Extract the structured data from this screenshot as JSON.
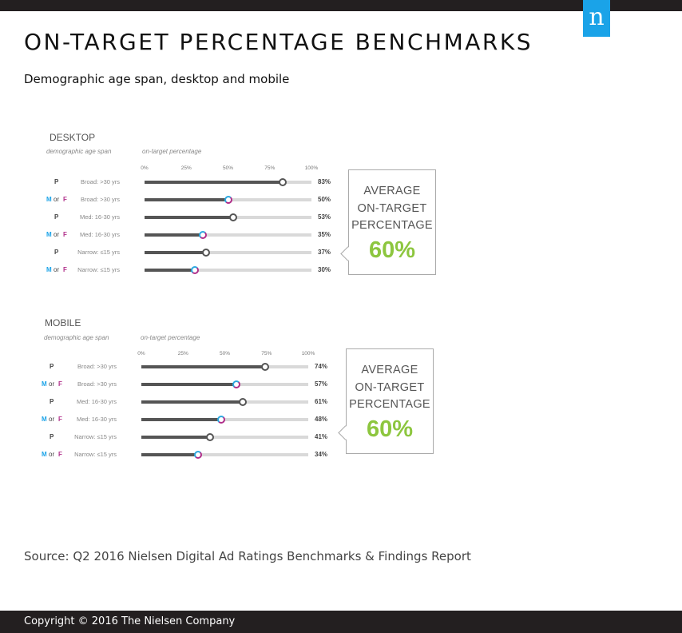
{
  "header": {
    "logo_letter": "n",
    "title": "ON-TARGET PERCENTAGE BENCHMARKS",
    "subtitle": "Demographic age span, desktop and mobile"
  },
  "chart_data": [
    {
      "type": "bar",
      "title": "DESKTOP",
      "row_header": "demographic age span",
      "column_header": "on-target percentage",
      "xlim": [
        0,
        100
      ],
      "ticks": [
        "0%",
        "25%",
        "50%",
        "75%",
        "100%"
      ],
      "rows": [
        {
          "target": "P",
          "span": "Broad: >30 yrs",
          "value": 83,
          "label": "83%"
        },
        {
          "target": "M or F",
          "span": "Broad: >30 yrs",
          "value": 50,
          "label": "50%"
        },
        {
          "target": "P",
          "span": "Med: 16-30 yrs",
          "value": 53,
          "label": "53%"
        },
        {
          "target": "M or F",
          "span": "Med: 16-30 yrs",
          "value": 35,
          "label": "35%"
        },
        {
          "target": "P",
          "span": "Narrow: ≤15 yrs",
          "value": 37,
          "label": "37%"
        },
        {
          "target": "M or F",
          "span": "Narrow: ≤15 yrs",
          "value": 30,
          "label": "30%"
        }
      ],
      "average_label": [
        "AVERAGE",
        "ON-TARGET",
        "PERCENTAGE"
      ],
      "average_value": "60%"
    },
    {
      "type": "bar",
      "title": "MOBILE",
      "row_header": "demographic age span",
      "column_header": "on-target percentage",
      "xlim": [
        0,
        100
      ],
      "ticks": [
        "0%",
        "25%",
        "50%",
        "75%",
        "100%"
      ],
      "rows": [
        {
          "target": "P",
          "span": "Broad: >30 yrs",
          "value": 74,
          "label": "74%"
        },
        {
          "target": "M or F",
          "span": "Broad: >30 yrs",
          "value": 57,
          "label": "57%"
        },
        {
          "target": "P",
          "span": "Med: 16-30 yrs",
          "value": 61,
          "label": "61%"
        },
        {
          "target": "M or F",
          "span": "Med: 16-30 yrs",
          "value": 48,
          "label": "48%"
        },
        {
          "target": "P",
          "span": "Narrow: ≤15 yrs",
          "value": 41,
          "label": "41%"
        },
        {
          "target": "M or F",
          "span": "Narrow: ≤15 yrs",
          "value": 34,
          "label": "34%"
        }
      ],
      "average_label": [
        "AVERAGE",
        "ON-TARGET",
        "PERCENTAGE"
      ],
      "average_value": "60%"
    }
  ],
  "colors": {
    "male": "#1aa3e8",
    "female": "#b02e8a",
    "bar": "#555555",
    "track": "#d9d9d9",
    "average_value": "#8dc63f",
    "logo": "#1aa3e8"
  },
  "source": "Source: Q2 2016 Nielsen Digital Ad Ratings Benchmarks & Findings Report",
  "footer": {
    "copyright": "Copyright © 2016 The Nielsen Company"
  }
}
